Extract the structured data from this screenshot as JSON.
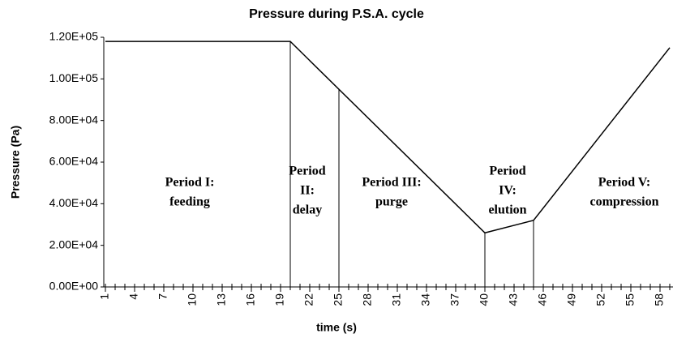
{
  "chart_data": {
    "type": "line",
    "title": "Pressure during P.S.A. cycle",
    "x_label": "time (s)",
    "y_label": "Pressure (Pa)",
    "series": [
      {
        "name": "Pressure",
        "color": "#000000",
        "x": [
          1,
          20,
          40,
          45,
          59
        ],
        "values": [
          118000,
          118000,
          26000,
          32000,
          115000
        ]
      }
    ],
    "xlim": [
      1,
      59
    ],
    "xticks": [
      1,
      4,
      7,
      10,
      13,
      16,
      19,
      22,
      25,
      28,
      31,
      34,
      37,
      40,
      43,
      46,
      49,
      52,
      55,
      58
    ],
    "ylim": [
      0,
      120000
    ],
    "yticks": [
      {
        "value": 0,
        "label": "0.00E+00"
      },
      {
        "value": 20000,
        "label": "2.00E+04"
      },
      {
        "value": 40000,
        "label": "4.00E+04"
      },
      {
        "value": 60000,
        "label": "6.00E+04"
      },
      {
        "value": 80000,
        "label": "8.00E+04"
      },
      {
        "value": 100000,
        "label": "1.00E+05"
      },
      {
        "value": 120000,
        "label": "1.20E+05"
      }
    ],
    "dividers": [
      20,
      25,
      40,
      45
    ],
    "annotations": [
      [
        "Period I:",
        "feeding"
      ],
      [
        "Period",
        "II:",
        "delay"
      ],
      [
        "Period III:",
        "purge"
      ],
      [
        "Period",
        "IV:",
        "elution"
      ],
      [
        "Period V:",
        "compression"
      ]
    ]
  }
}
